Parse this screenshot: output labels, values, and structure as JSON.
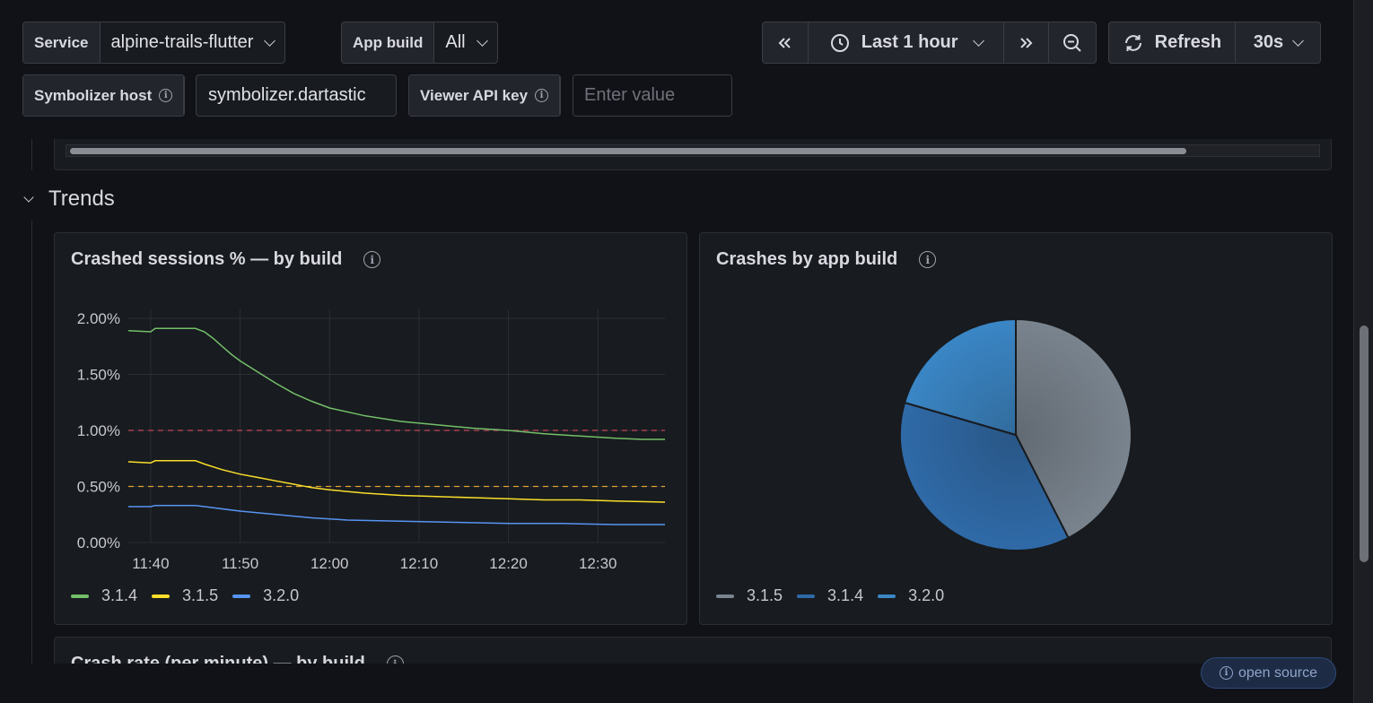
{
  "variables": {
    "service": {
      "label": "Service",
      "value": "alpine-trails-flutter"
    },
    "app_build": {
      "label": "App build",
      "value": "All"
    },
    "symbolizer_host": {
      "label": "Symbolizer host",
      "value": "symbolizer.dartastic"
    },
    "viewer_api_key": {
      "label": "Viewer API key",
      "placeholder": "Enter value"
    }
  },
  "time_controls": {
    "range": "Last 1 hour",
    "refresh_label": "Refresh",
    "interval": "30s"
  },
  "row": {
    "title": "Trends"
  },
  "panels": {
    "crashed_sessions": {
      "title": "Crashed sessions % — by build"
    },
    "crashes_by_build": {
      "title": "Crashes by app build"
    },
    "crash_rate": {
      "title": "Crash rate (per minute) — by build"
    }
  },
  "footer": {
    "badge": "open source"
  },
  "colors": {
    "green": "#73bf69",
    "yellow": "#fade2a",
    "blue": "#5794f2",
    "gray": "#7a848e"
  },
  "chart_data": [
    {
      "type": "line",
      "title": "Crashed sessions % — by build",
      "y_ticks": [
        "2.00%",
        "1.50%",
        "1.00%",
        "0.50%",
        "0.00%"
      ],
      "x_ticks": [
        "11:40",
        "11:50",
        "12:00",
        "12:10",
        "12:20",
        "12:30"
      ],
      "ylim": [
        0,
        2.0
      ],
      "xlim_minutes": [
        -2.5,
        57.5
      ],
      "thresholds": [
        {
          "value": 1.0,
          "color": "#c4475a"
        },
        {
          "value": 0.5,
          "color": "#e0a030"
        }
      ],
      "series": [
        {
          "name": "3.1.4",
          "color": "#73bf69",
          "points": [
            [
              -2.5,
              1.89
            ],
            [
              0,
              1.88
            ],
            [
              0.5,
              1.91
            ],
            [
              5,
              1.91
            ],
            [
              6,
              1.88
            ],
            [
              7,
              1.82
            ],
            [
              8,
              1.75
            ],
            [
              9,
              1.68
            ],
            [
              10,
              1.62
            ],
            [
              12,
              1.52
            ],
            [
              14,
              1.42
            ],
            [
              16,
              1.33
            ],
            [
              18,
              1.26
            ],
            [
              20,
              1.2
            ],
            [
              24,
              1.13
            ],
            [
              28,
              1.08
            ],
            [
              32,
              1.05
            ],
            [
              36,
              1.02
            ],
            [
              40,
              1.0
            ],
            [
              44,
              0.97
            ],
            [
              48,
              0.95
            ],
            [
              52,
              0.93
            ],
            [
              55,
              0.92
            ],
            [
              57.5,
              0.92
            ]
          ]
        },
        {
          "name": "3.1.5",
          "color": "#fade2a",
          "points": [
            [
              -2.5,
              0.72
            ],
            [
              0,
              0.71
            ],
            [
              0.5,
              0.73
            ],
            [
              5,
              0.73
            ],
            [
              6,
              0.7
            ],
            [
              8,
              0.65
            ],
            [
              10,
              0.61
            ],
            [
              12,
              0.58
            ],
            [
              14,
              0.55
            ],
            [
              16,
              0.52
            ],
            [
              18,
              0.49
            ],
            [
              20,
              0.47
            ],
            [
              24,
              0.44
            ],
            [
              28,
              0.42
            ],
            [
              32,
              0.41
            ],
            [
              36,
              0.4
            ],
            [
              40,
              0.39
            ],
            [
              44,
              0.38
            ],
            [
              48,
              0.38
            ],
            [
              52,
              0.37
            ],
            [
              57.5,
              0.36
            ]
          ]
        },
        {
          "name": "3.2.0",
          "color": "#5794f2",
          "points": [
            [
              -2.5,
              0.32
            ],
            [
              0,
              0.32
            ],
            [
              0.5,
              0.33
            ],
            [
              5,
              0.33
            ],
            [
              7,
              0.31
            ],
            [
              10,
              0.28
            ],
            [
              14,
              0.25
            ],
            [
              18,
              0.22
            ],
            [
              22,
              0.2
            ],
            [
              28,
              0.19
            ],
            [
              34,
              0.18
            ],
            [
              40,
              0.17
            ],
            [
              46,
              0.17
            ],
            [
              52,
              0.16
            ],
            [
              57.5,
              0.16
            ]
          ]
        }
      ]
    },
    {
      "type": "pie",
      "title": "Crashes by app build",
      "slices": [
        {
          "label": "3.1.5",
          "value": 42.5,
          "color": "#7a848e"
        },
        {
          "label": "3.1.4",
          "value": 37.0,
          "color": "#2f6aa8"
        },
        {
          "label": "3.2.0",
          "value": 20.5,
          "color": "#3a86c6"
        }
      ]
    }
  ]
}
